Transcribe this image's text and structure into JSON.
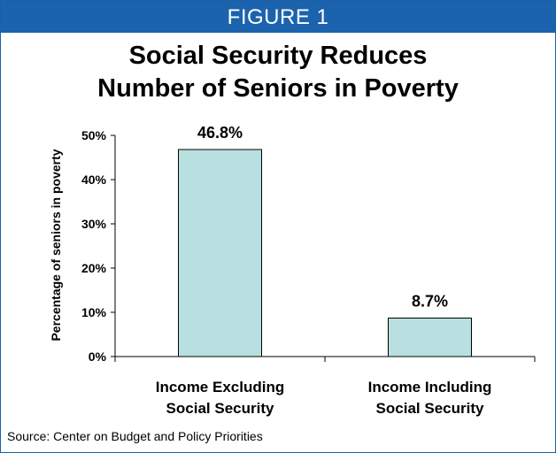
{
  "figure_label": "FIGURE 1",
  "title_line1": "Social Security Reduces",
  "title_line2": "Number of Seniors in Poverty",
  "source": "Source: Center on Budget and Policy Priorities",
  "colors": {
    "banner": "#1b63ad",
    "frame": "#1a5fa6",
    "bar_fill": "#b9e0e0",
    "bar_stroke": "#000000"
  },
  "chart_data": {
    "type": "bar",
    "categories": [
      [
        "Income Excluding",
        "Social Security"
      ],
      [
        "Income Including",
        "Social Security"
      ]
    ],
    "values": [
      46.8,
      8.7
    ],
    "data_labels": [
      "46.8%",
      "8.7%"
    ],
    "ylabel": "Percentage of seniors in poverty",
    "ylim": [
      0,
      50
    ],
    "yticks": [
      0,
      10,
      20,
      30,
      40,
      50
    ],
    "ytick_labels": [
      "0%",
      "10%",
      "20%",
      "30%",
      "40%",
      "50%"
    ],
    "grid": false,
    "legend": false
  }
}
